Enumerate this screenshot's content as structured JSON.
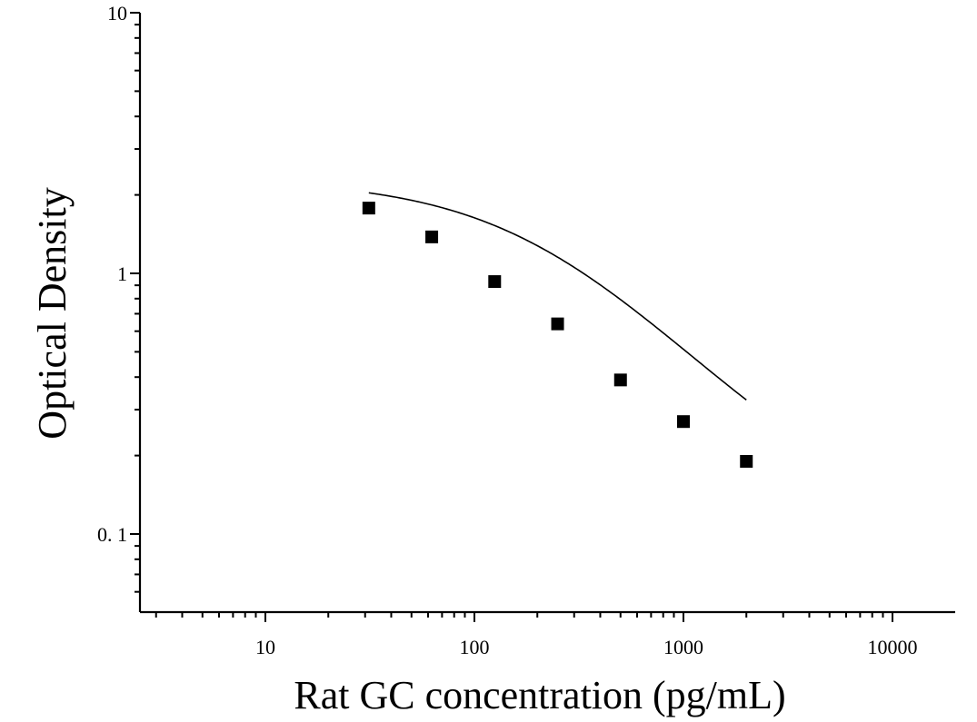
{
  "chart_data": {
    "type": "scatter",
    "title": "",
    "xlabel": "Rat GC concentration (pg/mL)",
    "ylabel": "Optical Density",
    "x_scale": "log",
    "y_scale": "log",
    "xlim": [
      2.5,
      20000
    ],
    "ylim": [
      0.05,
      10
    ],
    "x_ticks": [
      {
        "value": 10,
        "label": "10"
      },
      {
        "value": 100,
        "label": "100"
      },
      {
        "value": 1000,
        "label": "1000"
      },
      {
        "value": 10000,
        "label": "10000"
      }
    ],
    "y_ticks": [
      {
        "value": 0.1,
        "label": "0. 1"
      },
      {
        "value": 1,
        "label": "1"
      },
      {
        "value": 10,
        "label": "10"
      }
    ],
    "grid": false,
    "legend": false,
    "series": [
      {
        "marker": "square",
        "color": "#000000",
        "x": [
          31.25,
          62.5,
          125,
          250,
          500,
          1000,
          2000
        ],
        "y": [
          1.78,
          1.38,
          0.93,
          0.64,
          0.39,
          0.27,
          0.19
        ]
      }
    ],
    "fit_curve": {
      "type": "4PL",
      "color": "#000000",
      "A": 2.3,
      "B": 1.0,
      "C": 230,
      "D": 0.1
    }
  }
}
